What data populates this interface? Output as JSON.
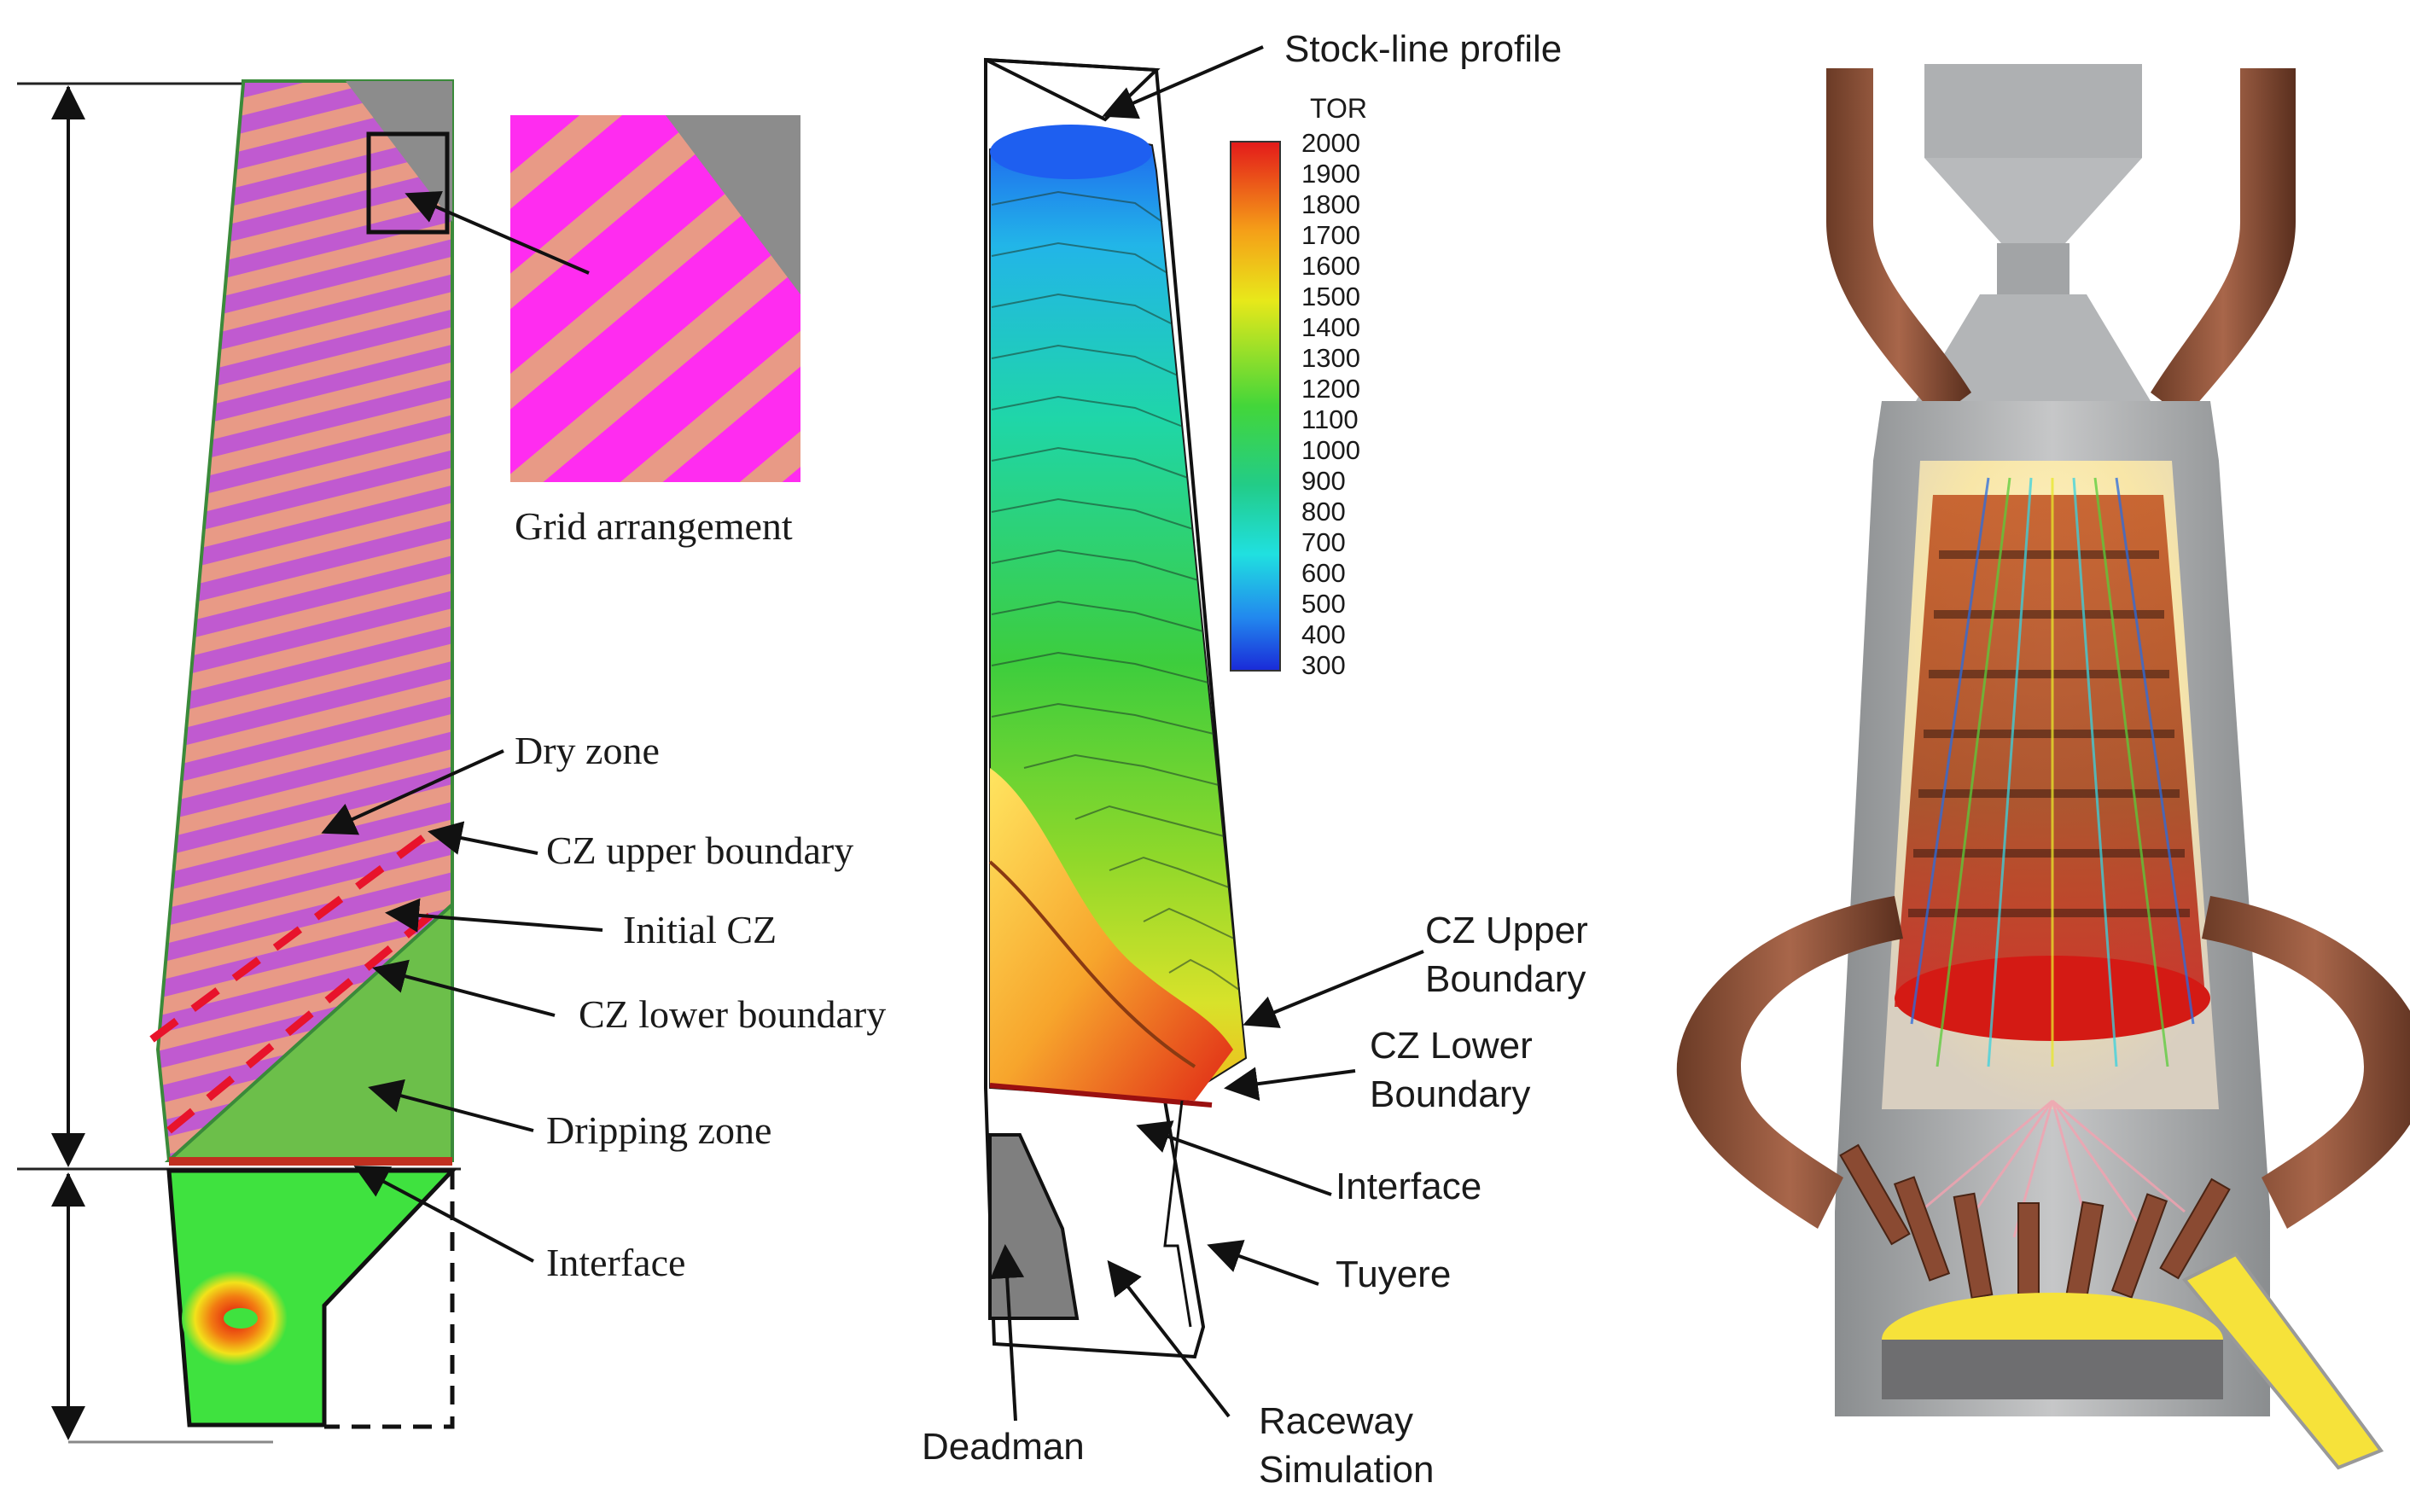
{
  "panel_a": {
    "inset_caption": "Grid arrangement",
    "labels": {
      "dry_zone": "Dry zone",
      "cz_upper": "CZ upper boundary",
      "initial_cz": "Initial CZ",
      "cz_lower": "CZ lower boundary",
      "dripping_zone": "Dripping zone",
      "interface": "Interface"
    }
  },
  "panel_b": {
    "stock_line": "Stock-line profile",
    "legend_title": "TOR",
    "legend_ticks": [
      "2000",
      "1900",
      "1800",
      "1700",
      "1600",
      "1500",
      "1400",
      "1300",
      "1200",
      "1100",
      "1000",
      "900",
      "800",
      "700",
      "600",
      "500",
      "400",
      "300"
    ],
    "labels": {
      "cz_upper_1": "CZ Upper",
      "cz_upper_2": "Boundary",
      "cz_lower_1": "CZ Lower",
      "cz_lower_2": "Boundary",
      "interface": "Interface",
      "tuyere": "Tuyere",
      "deadman": "Deadman",
      "raceway_1": "Raceway",
      "raceway_2": "Simulation"
    }
  },
  "colors": {
    "magenta": "#e832e8",
    "salmon": "#e89a86",
    "grey": "#8c8c8c",
    "drip_green": "#6cbf4a",
    "bright_green": "#3fe23f",
    "red_dash": "#e8132b"
  }
}
